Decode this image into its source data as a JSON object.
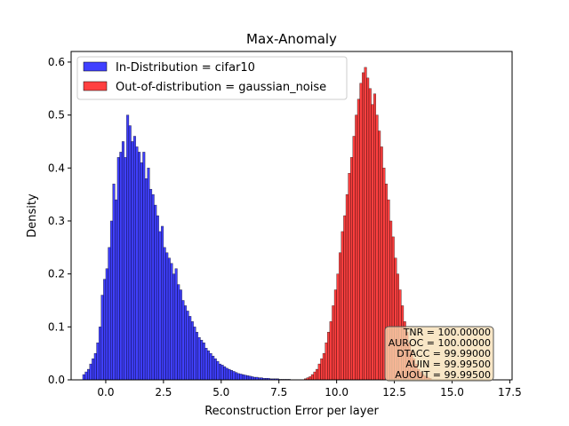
{
  "chart_data": {
    "type": "histogram",
    "title": "Max-Anomaly",
    "xlabel": "Reconstruction Error per layer",
    "ylabel": "Density",
    "xlim": [
      -1.5,
      17.6
    ],
    "ylim": [
      0,
      0.62
    ],
    "xticks": [
      "0.0",
      "2.5",
      "5.0",
      "7.5",
      "10.0",
      "12.5",
      "15.0",
      "17.5"
    ],
    "yticks": [
      "0.0",
      "0.1",
      "0.2",
      "0.3",
      "0.4",
      "0.5",
      "0.6"
    ],
    "legend_position": "top-left",
    "series": [
      {
        "name": "In-Distribution = cifar10",
        "color": "#0000ff",
        "bin_start": -1.0,
        "bin_width": 0.1,
        "values": [
          0.01,
          0.015,
          0.02,
          0.03,
          0.04,
          0.05,
          0.07,
          0.1,
          0.16,
          0.19,
          0.21,
          0.25,
          0.3,
          0.37,
          0.34,
          0.42,
          0.43,
          0.45,
          0.42,
          0.5,
          0.48,
          0.45,
          0.46,
          0.44,
          0.43,
          0.41,
          0.43,
          0.38,
          0.4,
          0.36,
          0.35,
          0.33,
          0.31,
          0.28,
          0.29,
          0.25,
          0.24,
          0.23,
          0.22,
          0.2,
          0.21,
          0.18,
          0.17,
          0.15,
          0.14,
          0.13,
          0.12,
          0.11,
          0.1,
          0.09,
          0.08,
          0.075,
          0.07,
          0.06,
          0.055,
          0.05,
          0.045,
          0.04,
          0.035,
          0.03,
          0.028,
          0.025,
          0.022,
          0.02,
          0.018,
          0.016,
          0.014,
          0.012,
          0.011,
          0.01,
          0.009,
          0.008,
          0.007,
          0.006,
          0.005,
          0.005,
          0.004,
          0.004,
          0.003,
          0.003,
          0.003,
          0.002,
          0.002,
          0.002,
          0.002,
          0.001,
          0.001,
          0.001,
          0.001,
          0.001
        ]
      },
      {
        "name": "Out-of-distribution = gaussian_noise",
        "color": "#ff0000",
        "bin_start": 8.6,
        "bin_width": 0.1,
        "values": [
          0.002,
          0.004,
          0.006,
          0.01,
          0.015,
          0.02,
          0.03,
          0.04,
          0.05,
          0.07,
          0.09,
          0.11,
          0.14,
          0.17,
          0.2,
          0.24,
          0.28,
          0.31,
          0.35,
          0.39,
          0.42,
          0.46,
          0.5,
          0.53,
          0.56,
          0.58,
          0.59,
          0.57,
          0.55,
          0.52,
          0.54,
          0.5,
          0.47,
          0.44,
          0.4,
          0.37,
          0.34,
          0.3,
          0.27,
          0.23,
          0.2,
          0.17,
          0.14,
          0.11,
          0.09,
          0.07,
          0.055,
          0.04,
          0.03,
          0.02,
          0.015,
          0.01,
          0.007,
          0.005,
          0.003
        ]
      }
    ],
    "annotation": [
      "TNR = 100.00000",
      "AUROC = 100.00000",
      "DTACC = 99.99000",
      "AUIN = 99.99500",
      "AUOUT = 99.99500"
    ]
  }
}
